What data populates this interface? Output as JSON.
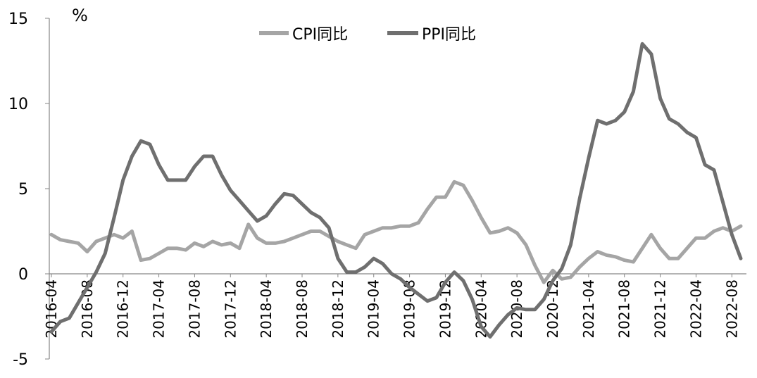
{
  "chart_data": {
    "type": "line",
    "title": "",
    "ylabel": "%",
    "xlabel": "",
    "ylim": [
      -5,
      15
    ],
    "yticks": [
      -5,
      0,
      5,
      10,
      15
    ],
    "grid": false,
    "legend_placement": "top-center",
    "tick_label_every": 4,
    "categories": [
      "2016-04",
      "2016-05",
      "2016-06",
      "2016-07",
      "2016-08",
      "2016-09",
      "2016-10",
      "2016-11",
      "2016-12",
      "2017-01",
      "2017-02",
      "2017-03",
      "2017-04",
      "2017-05",
      "2017-06",
      "2017-07",
      "2017-08",
      "2017-09",
      "2017-10",
      "2017-11",
      "2017-12",
      "2018-01",
      "2018-02",
      "2018-03",
      "2018-04",
      "2018-05",
      "2018-06",
      "2018-07",
      "2018-08",
      "2018-09",
      "2018-10",
      "2018-11",
      "2018-12",
      "2019-01",
      "2019-02",
      "2019-03",
      "2019-04",
      "2019-05",
      "2019-06",
      "2019-07",
      "2019-08",
      "2019-09",
      "2019-10",
      "2019-11",
      "2019-12",
      "2020-01",
      "2020-02",
      "2020-03",
      "2020-04",
      "2020-05",
      "2020-06",
      "2020-07",
      "2020-08",
      "2020-09",
      "2020-10",
      "2020-11",
      "2020-12",
      "2021-01",
      "2021-02",
      "2021-03",
      "2021-04",
      "2021-05",
      "2021-06",
      "2021-07",
      "2021-08",
      "2021-09",
      "2021-10",
      "2021-11",
      "2021-12",
      "2022-01",
      "2022-02",
      "2022-03",
      "2022-04",
      "2022-05",
      "2022-06",
      "2022-07",
      "2022-08",
      "2022-09"
    ],
    "series": [
      {
        "name": "CPI同比",
        "color": "#a5a5a5",
        "values": [
          2.3,
          2.0,
          1.9,
          1.8,
          1.3,
          1.9,
          2.1,
          2.3,
          2.1,
          2.5,
          0.8,
          0.9,
          1.2,
          1.5,
          1.5,
          1.4,
          1.8,
          1.6,
          1.9,
          1.7,
          1.8,
          1.5,
          2.9,
          2.1,
          1.8,
          1.8,
          1.9,
          2.1,
          2.3,
          2.5,
          2.5,
          2.2,
          1.9,
          1.7,
          1.5,
          2.3,
          2.5,
          2.7,
          2.7,
          2.8,
          2.8,
          3.0,
          3.8,
          4.5,
          4.5,
          5.4,
          5.2,
          4.3,
          3.3,
          2.4,
          2.5,
          2.7,
          2.4,
          1.7,
          0.5,
          -0.5,
          0.2,
          -0.3,
          -0.2,
          0.4,
          0.9,
          1.3,
          1.1,
          1.0,
          0.8,
          0.7,
          1.5,
          2.3,
          1.5,
          0.9,
          0.9,
          1.5,
          2.1,
          2.1,
          2.5,
          2.7,
          2.5,
          2.8
        ]
      },
      {
        "name": "PPI同比",
        "color": "#6f6f6f",
        "values": [
          -3.4,
          -2.8,
          -2.6,
          -1.7,
          -0.8,
          0.1,
          1.2,
          3.3,
          5.5,
          6.9,
          7.8,
          7.6,
          6.4,
          5.5,
          5.5,
          5.5,
          6.3,
          6.9,
          6.9,
          5.8,
          4.9,
          4.3,
          3.7,
          3.1,
          3.4,
          4.1,
          4.7,
          4.6,
          4.1,
          3.6,
          3.3,
          2.7,
          0.9,
          0.1,
          0.1,
          0.4,
          0.9,
          0.6,
          0.0,
          -0.3,
          -0.8,
          -1.2,
          -1.6,
          -1.4,
          -0.5,
          0.1,
          -0.4,
          -1.5,
          -3.1,
          -3.7,
          -3.0,
          -2.4,
          -2.0,
          -2.1,
          -2.1,
          -1.5,
          -0.4,
          0.3,
          1.7,
          4.4,
          6.8,
          9.0,
          8.8,
          9.0,
          9.5,
          10.7,
          13.5,
          12.9,
          10.3,
          9.1,
          8.8,
          8.3,
          8.0,
          6.4,
          6.1,
          4.2,
          2.3,
          0.9
        ]
      }
    ]
  }
}
